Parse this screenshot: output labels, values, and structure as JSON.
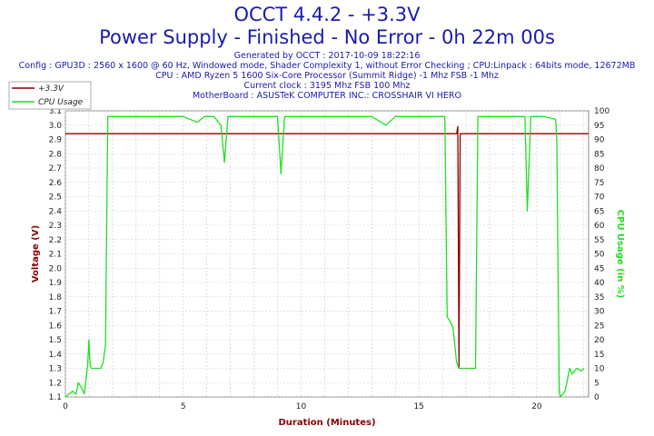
{
  "header": {
    "title": "OCCT 4.4.2 - +3.3V",
    "subtitle": "Power Supply - Finished - No Error - 0h 22m 00s",
    "info_lines": [
      "Generated by OCCT : 2017-10-09 18:22:16",
      "Config : GPU3D : 2560 x 1600 @ 60 Hz, Windowed mode, Shader Complexity 1, without Error Checking ; CPU:Linpack : 64bits mode, 12672MB",
      "CPU : AMD Ryzen 5 1600 Six-Core Processor (Summit Ridge) -1 Mhz FSB -1 Mhz",
      "Current clock : 3195 Mhz FSB 100 Mhz",
      "MotherBoard : ASUSTeK COMPUTER INC.: CROSSHAIR VI HERO"
    ]
  },
  "colors": {
    "voltage": "#8b0000",
    "cpu": "#22dd22",
    "text_blue": "#1a1ab0",
    "grid": "#c8c8c8"
  },
  "chart_data": {
    "type": "line",
    "xlabel": "Duration (Minutes)",
    "ylabel_left": "Voltage (V)",
    "ylabel_right": "CPU Usage (in %)",
    "xlim": [
      0,
      22.2
    ],
    "ylim_left": [
      1.1,
      3.1
    ],
    "ylim_right": [
      0,
      100
    ],
    "x_ticks": [
      0,
      5,
      10,
      15,
      20
    ],
    "y_left_ticks": [
      1.1,
      1.2,
      1.3,
      1.4,
      1.5,
      1.6,
      1.7,
      1.8,
      1.9,
      2.0,
      2.1,
      2.2,
      2.3,
      2.4,
      2.5,
      2.6,
      2.7,
      2.8,
      2.9,
      3.0,
      3.1
    ],
    "y_right_ticks": [
      0,
      5,
      10,
      15,
      20,
      25,
      30,
      35,
      40,
      45,
      50,
      55,
      60,
      65,
      70,
      75,
      80,
      85,
      90,
      95,
      100
    ],
    "grid": true,
    "legend_position": "top-left",
    "series": [
      {
        "name": "+3.3V",
        "axis": "left",
        "x": [
          0,
          1.7,
          1.8,
          5,
          10,
          15,
          16.6,
          16.65,
          16.7,
          16.75,
          17,
          20,
          22.2
        ],
        "y": [
          2.94,
          2.94,
          2.94,
          2.94,
          2.94,
          2.94,
          2.94,
          2.99,
          1.3,
          2.94,
          2.94,
          2.94,
          2.94
        ]
      },
      {
        "name": "CPU Usage",
        "axis": "right",
        "x": [
          0,
          0.3,
          0.45,
          0.55,
          0.7,
          0.8,
          0.9,
          0.95,
          1.0,
          1.05,
          1.1,
          1.5,
          1.6,
          1.7,
          1.8,
          2.3,
          3.0,
          3.5,
          4.0,
          4.5,
          5.0,
          5.6,
          5.9,
          6.3,
          6.6,
          6.75,
          6.9,
          7.5,
          8.0,
          8.5,
          9.0,
          9.15,
          9.3,
          10.0,
          10.5,
          11.0,
          11.5,
          12.0,
          13.0,
          13.6,
          14.0,
          14.5,
          14.9,
          15.3,
          15.5,
          15.9,
          16.1,
          16.2,
          16.35,
          16.45,
          16.6,
          16.7,
          16.9,
          17.0,
          17.2,
          17.4,
          17.5,
          17.6,
          17.8,
          18.2,
          18.6,
          19.2,
          19.5,
          19.6,
          19.75,
          19.9,
          20.3,
          20.8,
          20.85,
          20.95,
          21.0,
          21.2,
          21.4,
          21.5,
          21.7,
          21.9,
          22.0
        ],
        "y": [
          0,
          2,
          1,
          5,
          3,
          1,
          8,
          12,
          20,
          11,
          10,
          10,
          12,
          18,
          98,
          98,
          98,
          98,
          98,
          98,
          98,
          96,
          98,
          98,
          95,
          82,
          98,
          98,
          98,
          98,
          98,
          78,
          98,
          98,
          98,
          98,
          98,
          98,
          98,
          95,
          98,
          98,
          98,
          98,
          98,
          98,
          98,
          28,
          26,
          24,
          12,
          10,
          10,
          10,
          10,
          10,
          98,
          98,
          98,
          98,
          98,
          98,
          98,
          65,
          98,
          98,
          98,
          97,
          90,
          2,
          0,
          2,
          10,
          8,
          10,
          9,
          10
        ]
      }
    ]
  }
}
